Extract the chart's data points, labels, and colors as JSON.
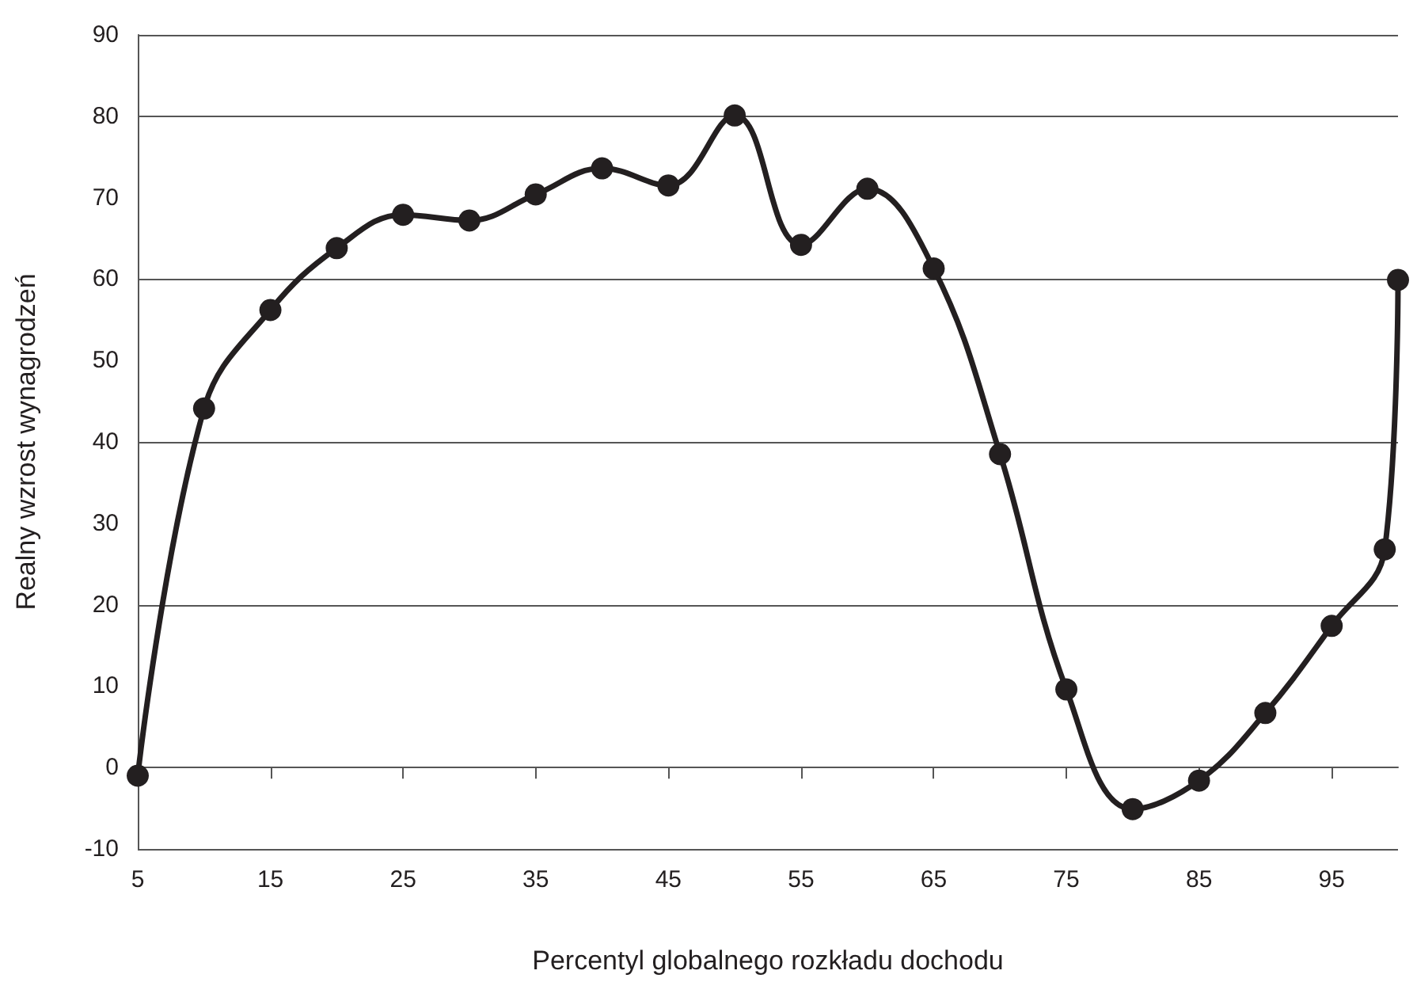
{
  "chart_data": {
    "type": "line",
    "xlabel": "Percentyl globalnego rozkładu dochodu",
    "ylabel": "Realny wzrost wynagrodzeń",
    "x": [
      5,
      10,
      15,
      20,
      25,
      30,
      35,
      40,
      45,
      50,
      55,
      60,
      65,
      70,
      75,
      80,
      85,
      90,
      95,
      99,
      100
    ],
    "series": [
      {
        "color": "#231f20",
        "values": [
          -1,
          44.1,
          56.2,
          63.8,
          67.9,
          67.2,
          70.4,
          73.6,
          71.5,
          80.1,
          64.2,
          71.1,
          61.3,
          38.5,
          9.6,
          -5.1,
          -1.6,
          6.7,
          17.4,
          26.8,
          59.9
        ]
      }
    ],
    "xlim": [
      5,
      100
    ],
    "xticks": [
      5,
      15,
      25,
      35,
      45,
      55,
      65,
      75,
      85,
      95
    ],
    "ylim": [
      -10,
      90
    ],
    "yticks": [
      -10,
      0,
      10,
      20,
      30,
      40,
      50,
      60,
      70,
      80,
      90
    ],
    "grid": "y",
    "marker": "circle",
    "line_style": "solid"
  }
}
